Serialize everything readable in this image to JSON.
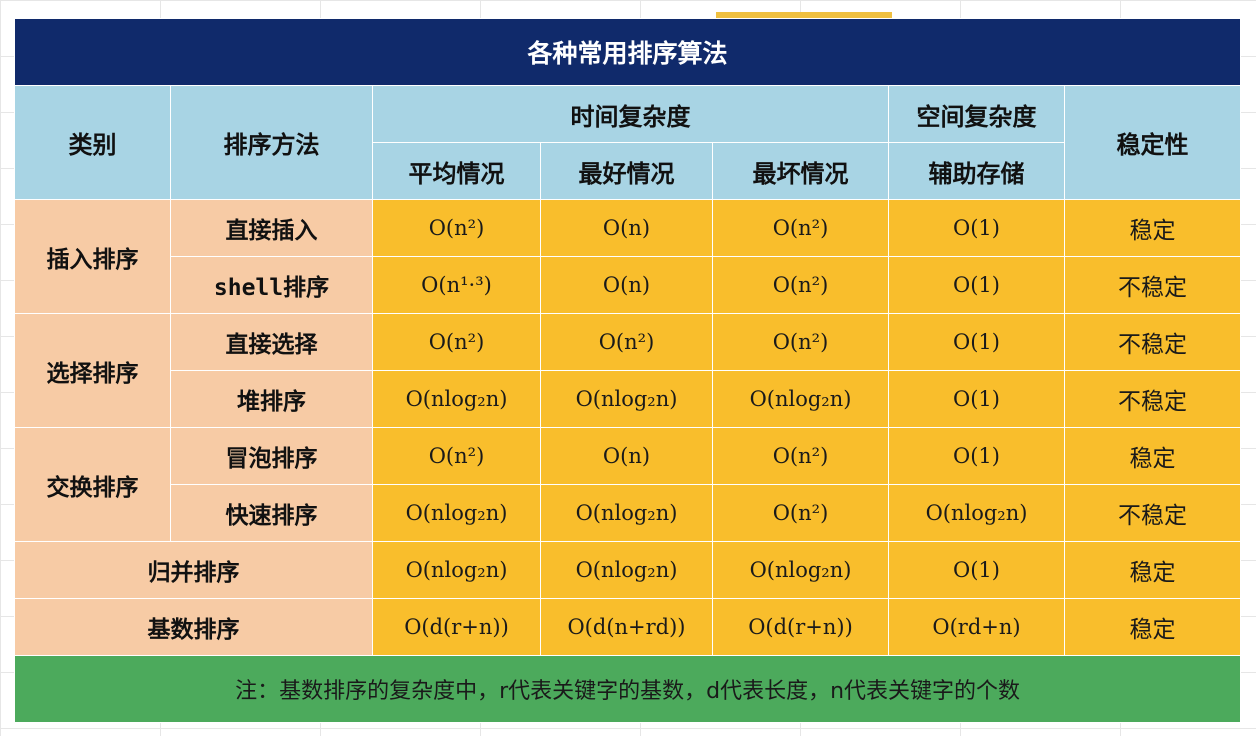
{
  "title": "各种常用排序算法",
  "headers": {
    "category": "类别",
    "method": "排序方法",
    "time_group": "时间复杂度",
    "space_group": "空间复杂度",
    "stability": "稳定性",
    "avg": "平均情况",
    "best": "最好情况",
    "worst": "最坏情况",
    "aux": "辅助存储"
  },
  "groups": [
    {
      "category": "插入排序",
      "rows": [
        {
          "method": "直接插入",
          "avg": "O(n²)",
          "best": "O(n)",
          "worst": "O(n²)",
          "space": "O(1)",
          "stability": "稳定"
        },
        {
          "method": "shell排序",
          "avg": "O(n¹·³)",
          "best": "O(n)",
          "worst": "O(n²)",
          "space": "O(1)",
          "stability": "不稳定"
        }
      ]
    },
    {
      "category": "选择排序",
      "rows": [
        {
          "method": "直接选择",
          "avg": "O(n²)",
          "best": "O(n²)",
          "worst": "O(n²)",
          "space": "O(1)",
          "stability": "不稳定"
        },
        {
          "method": "堆排序",
          "avg": "O(nlog₂n)",
          "best": "O(nlog₂n)",
          "worst": "O(nlog₂n)",
          "space": "O(1)",
          "stability": "不稳定"
        }
      ]
    },
    {
      "category": "交换排序",
      "rows": [
        {
          "method": "冒泡排序",
          "avg": "O(n²)",
          "best": "O(n)",
          "worst": "O(n²)",
          "space": "O(1)",
          "stability": "稳定"
        },
        {
          "method": "快速排序",
          "avg": "O(nlog₂n)",
          "best": "O(nlog₂n)",
          "worst": "O(n²)",
          "space": "O(nlog₂n)",
          "stability": "不稳定"
        }
      ]
    }
  ],
  "merged_rows": [
    {
      "method": "归并排序",
      "avg": "O(nlog₂n)",
      "best": "O(nlog₂n)",
      "worst": "O(nlog₂n)",
      "space": "O(1)",
      "stability": "稳定"
    },
    {
      "method": "基数排序",
      "avg": "O(d(r+n))",
      "best": "O(d(n+rd))",
      "worst": "O(d(r+n))",
      "space": "O(rd+n)",
      "stability": "稳定"
    }
  ],
  "note": "注：基数排序的复杂度中，r代表关键字的基数，d代表长度，n代表关键字的个数",
  "colors": {
    "title_bg": "#102a6b",
    "header_bg": "#a8d4e4",
    "category_bg": "#f7cba5",
    "value_bg": "#f9be2c",
    "note_bg": "#4caa5c"
  }
}
